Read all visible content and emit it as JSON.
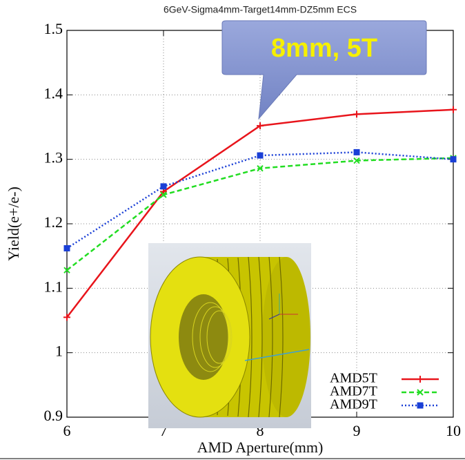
{
  "chart_data": {
    "type": "line",
    "title": "6GeV-Sigma4mm-Target14mm-DZ5mm ECS",
    "x_label": "AMD Aperture(mm)",
    "y_label": "Yield(e+/e-)",
    "annotation": "8mm, 5T",
    "x": [
      6,
      7,
      8,
      9,
      10
    ],
    "series": [
      {
        "name": "AMD5T",
        "color": "#e8141b",
        "dash": "solid",
        "marker": "plus",
        "values": [
          1.055,
          1.25,
          1.352,
          1.37,
          1.377
        ]
      },
      {
        "name": "AMD7T",
        "color": "#22dd22",
        "dash": "dashed",
        "marker": "cross",
        "values": [
          1.128,
          1.245,
          1.286,
          1.298,
          1.302
        ]
      },
      {
        "name": "AMD9T",
        "color": "#1a3fd6",
        "dash": "dotted",
        "marker": "square",
        "values": [
          1.162,
          1.258,
          1.306,
          1.311,
          1.3
        ]
      }
    ],
    "xlim": [
      6,
      10
    ],
    "xticks": [
      6,
      7,
      8,
      9,
      10
    ],
    "ylim": [
      0.9,
      1.5
    ],
    "yticks": [
      0.9,
      1,
      1.1,
      1.2,
      1.3,
      1.4,
      1.5
    ],
    "grid": true,
    "legend": "lower right"
  }
}
